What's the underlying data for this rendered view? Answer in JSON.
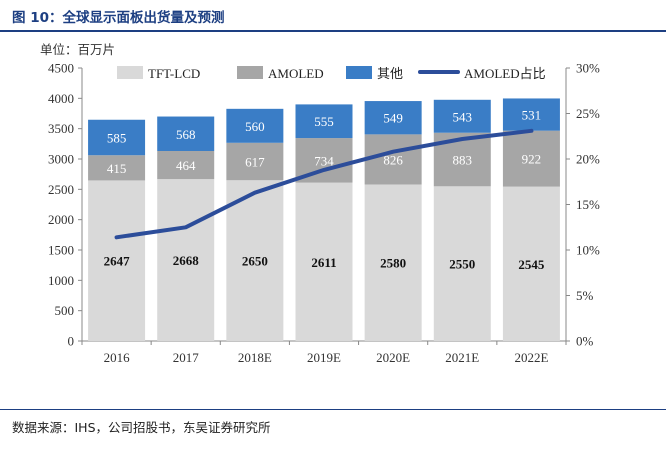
{
  "figure_title": "图 10：全球显示面板出货量及预测",
  "source": "数据来源：IHS，公司招股书，东吴证券研究所",
  "colors": {
    "tft": "#d9d9d9",
    "amoled": "#a6a6a6",
    "other": "#3a7dc6",
    "share_line": "#2c4d9a",
    "brand": "#1d3f82"
  },
  "chart_data": {
    "type": "bar",
    "stacked": true,
    "unit_label": "单位：百万片",
    "categories": [
      "2016",
      "2017",
      "2018E",
      "2019E",
      "2020E",
      "2021E",
      "2022E"
    ],
    "series": [
      {
        "name": "TFT-LCD",
        "values": [
          2647,
          2668,
          2650,
          2611,
          2580,
          2550,
          2545
        ]
      },
      {
        "name": "AMOLED",
        "values": [
          415,
          464,
          617,
          734,
          826,
          883,
          922
        ]
      },
      {
        "name": "其他",
        "values": [
          585,
          568,
          560,
          555,
          549,
          543,
          531
        ]
      }
    ],
    "line_series": {
      "name": "AMOLED占比",
      "type": "line",
      "axis": "right",
      "values": [
        11.4,
        12.5,
        16.3,
        18.8,
        20.8,
        22.2,
        23.1
      ]
    },
    "y_left": {
      "min": 0,
      "max": 4500,
      "step": 500,
      "tick_labels": [
        "0",
        "500",
        "1000",
        "1500",
        "2000",
        "2500",
        "3000",
        "3500",
        "4000",
        "4500"
      ]
    },
    "y_right": {
      "min": 0,
      "max": 30,
      "step": 5,
      "tick_labels": [
        "0%",
        "5%",
        "10%",
        "15%",
        "20%",
        "25%",
        "30%"
      ]
    },
    "legend_position": "top",
    "grid": false
  }
}
